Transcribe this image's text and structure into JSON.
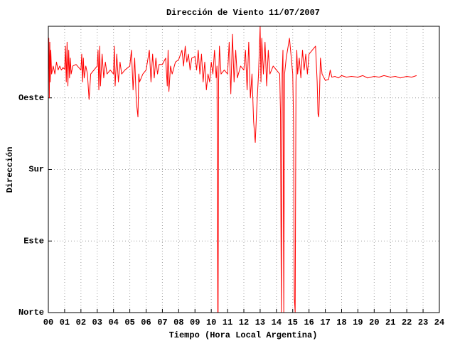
{
  "chart_data": {
    "type": "line",
    "title": "Dirección de Viento 11/07/2007",
    "x_label": "Tiempo (Hora Local Argentina)",
    "y_label": "Dirección",
    "color": "#ff0000",
    "grid": true,
    "xlim": [
      0,
      24
    ],
    "ylim": [
      0,
      360
    ],
    "xticks": [
      {
        "value": 0,
        "label": "00"
      },
      {
        "value": 1,
        "label": "01"
      },
      {
        "value": 2,
        "label": "02"
      },
      {
        "value": 3,
        "label": "03"
      },
      {
        "value": 4,
        "label": "04"
      },
      {
        "value": 5,
        "label": "05"
      },
      {
        "value": 6,
        "label": "06"
      },
      {
        "value": 7,
        "label": "07"
      },
      {
        "value": 8,
        "label": "08"
      },
      {
        "value": 9,
        "label": "09"
      },
      10,
      11,
      12,
      13,
      14,
      15,
      16,
      17,
      18,
      19,
      20,
      21,
      22,
      23,
      24
    ],
    "yticks": [
      {
        "value": 0,
        "label": "Norte"
      },
      {
        "value": 90,
        "label": "Este"
      },
      {
        "value": 180,
        "label": "Sur"
      },
      {
        "value": 270,
        "label": "Oeste"
      }
    ],
    "x": [
      0.0,
      0.03,
      0.06,
      0.09,
      0.12,
      0.15,
      0.2,
      0.3,
      0.4,
      0.5,
      0.6,
      0.7,
      0.8,
      0.9,
      1.0,
      1.05,
      1.1,
      1.15,
      1.2,
      1.25,
      1.3,
      1.35,
      1.4,
      1.5,
      1.7,
      2.0,
      2.05,
      2.1,
      2.15,
      2.2,
      2.3,
      2.4,
      2.5,
      2.6,
      2.8,
      3.0,
      3.05,
      3.1,
      3.15,
      3.2,
      3.3,
      3.4,
      3.5,
      3.6,
      3.8,
      4.0,
      4.05,
      4.1,
      4.2,
      4.3,
      4.4,
      4.5,
      4.7,
      5.0,
      5.1,
      5.2,
      5.3,
      5.4,
      5.5,
      5.55,
      5.6,
      5.8,
      6.0,
      6.2,
      6.3,
      6.4,
      6.5,
      6.6,
      6.7,
      6.8,
      7.0,
      7.2,
      7.3,
      7.35,
      7.4,
      7.5,
      7.6,
      7.8,
      8.0,
      8.2,
      8.3,
      8.4,
      8.5,
      8.6,
      8.7,
      8.8,
      9.0,
      9.1,
      9.2,
      9.3,
      9.4,
      9.5,
      9.6,
      9.7,
      9.8,
      9.9,
      10.0,
      10.1,
      10.2,
      10.3,
      10.35,
      10.4,
      10.42,
      10.45,
      10.5,
      10.6,
      10.8,
      11.0,
      11.1,
      11.2,
      11.3,
      11.4,
      11.5,
      11.6,
      11.8,
      12.0,
      12.1,
      12.2,
      12.3,
      12.4,
      12.5,
      12.6,
      12.7,
      12.8,
      12.9,
      13.0,
      13.05,
      13.1,
      13.2,
      13.3,
      13.4,
      13.5,
      13.6,
      13.8,
      14.0,
      14.2,
      14.25,
      14.3,
      14.35,
      14.4,
      14.45,
      14.5,
      14.6,
      14.8,
      15.0,
      15.05,
      15.1,
      15.15,
      15.2,
      15.25,
      15.3,
      15.4,
      15.5,
      15.6,
      15.7,
      15.8,
      15.9,
      16.0,
      16.2,
      16.4,
      16.5,
      16.55,
      16.6,
      16.65,
      16.7,
      16.8,
      17.0,
      17.2,
      17.3,
      17.4,
      17.6,
      17.8,
      18.0,
      18.3,
      18.6,
      19.0,
      19.3,
      19.6,
      20.0,
      20.3,
      20.6,
      21.0,
      21.3,
      21.6,
      22.0,
      22.3,
      22.6
    ],
    "values": [
      305,
      345,
      270,
      340,
      290,
      330,
      300,
      310,
      300,
      315,
      305,
      310,
      305,
      308,
      306,
      335,
      290,
      340,
      285,
      330,
      295,
      320,
      300,
      310,
      312,
      305,
      325,
      290,
      320,
      295,
      310,
      300,
      268,
      300,
      305,
      310,
      330,
      280,
      335,
      285,
      325,
      295,
      315,
      300,
      305,
      300,
      335,
      285,
      325,
      290,
      315,
      300,
      305,
      310,
      330,
      280,
      320,
      265,
      246,
      300,
      290,
      300,
      305,
      330,
      290,
      325,
      295,
      320,
      300,
      312,
      312,
      320,
      285,
      330,
      278,
      310,
      300,
      315,
      318,
      330,
      310,
      335,
      315,
      325,
      305,
      320,
      322,
      305,
      330,
      300,
      325,
      290,
      315,
      280,
      300,
      290,
      315,
      300,
      330,
      295,
      310,
      0,
      0,
      290,
      335,
      300,
      305,
      300,
      340,
      275,
      350,
      290,
      330,
      295,
      310,
      305,
      330,
      280,
      340,
      270,
      300,
      240,
      214,
      260,
      300,
      360,
      290,
      345,
      300,
      340,
      285,
      330,
      300,
      310,
      305,
      300,
      250,
      0,
      300,
      330,
      0,
      300,
      320,
      345,
      300,
      240,
      18,
      0,
      290,
      330,
      300,
      320,
      295,
      330,
      305,
      325,
      300,
      325,
      330,
      335,
      290,
      250,
      246,
      280,
      320,
      300,
      292,
      293,
      305,
      296,
      297,
      295,
      298,
      296,
      297,
      296,
      298,
      295,
      297,
      296,
      298,
      296,
      297,
      295,
      297,
      296,
      298
    ]
  }
}
